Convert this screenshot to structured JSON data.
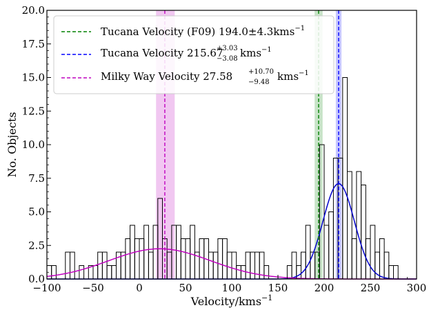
{
  "chart_data": {
    "type": "bar",
    "xlabel": "Velocity/kms",
    "xlabel_sup": "−1",
    "ylabel": "No. Objects",
    "xlim": [
      -100,
      300
    ],
    "ylim": [
      0,
      20
    ],
    "bin_width": 5,
    "x_ticks": [
      -100,
      -50,
      0,
      50,
      100,
      150,
      200,
      250,
      300
    ],
    "x_tick_labels": [
      "−100",
      "−50",
      "0",
      "50",
      "100",
      "150",
      "200",
      "250",
      "300"
    ],
    "y_ticks": [
      0,
      2.5,
      5,
      7.5,
      10,
      12.5,
      15,
      17.5,
      20
    ],
    "y_tick_labels": [
      "0.0",
      "2.5",
      "5.0",
      "7.5",
      "10.0",
      "12.5",
      "15.0",
      "17.5",
      "20.0"
    ],
    "histogram": {
      "bin_starts": [
        -100,
        -95,
        -80,
        -75,
        -65,
        -55,
        -50,
        -45,
        -40,
        -35,
        -30,
        -25,
        -20,
        -15,
        -10,
        -5,
        0,
        5,
        10,
        15,
        20,
        25,
        30,
        35,
        40,
        45,
        50,
        55,
        60,
        65,
        70,
        75,
        80,
        85,
        90,
        95,
        100,
        105,
        110,
        115,
        120,
        125,
        130,
        135,
        140,
        145,
        150,
        155,
        160,
        165,
        170,
        175,
        180,
        185,
        190,
        195,
        200,
        205,
        210,
        215,
        220,
        225,
        230,
        235,
        240,
        245,
        250,
        255,
        260,
        265,
        270,
        275
      ],
      "counts": [
        1,
        1,
        2,
        2,
        1,
        1,
        1,
        2,
        2,
        1,
        1,
        2,
        2,
        3,
        4,
        3,
        3,
        4,
        2,
        4,
        6,
        3,
        2,
        4,
        4,
        3,
        3,
        4,
        2,
        3,
        3,
        2,
        2,
        3,
        3,
        2,
        2,
        1,
        1,
        2,
        2,
        2,
        2,
        1,
        0,
        0,
        0,
        0,
        1,
        2,
        1,
        2,
        4,
        2,
        2,
        10,
        4,
        5,
        9,
        9,
        15,
        8,
        3,
        8,
        7,
        3,
        4,
        2,
        3,
        2,
        1,
        1
      ]
    },
    "series": [
      {
        "name": "Tucana Velocity (F09) 194.0±4.3kms",
        "name_sup": "−1",
        "color": "#008000",
        "value": 194.0,
        "err_minus": 4.3,
        "err_plus": 4.3
      },
      {
        "name": "Tucana Velocity 215.67",
        "name_sup": "+3.03",
        "name_sub": "−3.08",
        "name_tail": "kms",
        "name_tail_sup": "−1",
        "color": "#0000ff",
        "value": 215.67,
        "err_minus": 3.08,
        "err_plus": 3.03
      },
      {
        "name": "Milky Way Velocity 27.58",
        "name_sup": "+10.70",
        "name_sub": "−9.48",
        "name_tail": "kms",
        "name_tail_sup": "−1",
        "color": "#bf00bf",
        "value": 27.58,
        "err_minus": 9.48,
        "err_plus": 10.7
      }
    ],
    "gaussians": [
      {
        "mean": 215.67,
        "sigma": 17,
        "amplitude": 7.1,
        "color": "#0000cc"
      },
      {
        "mean": 22,
        "sigma": 55,
        "amplitude": 2.25,
        "color": "#bf00bf"
      }
    ],
    "legend_position": "top-left",
    "grid": false,
    "colors": {
      "bar_edge": "#000000",
      "bar_fill": "#ffffff"
    }
  }
}
